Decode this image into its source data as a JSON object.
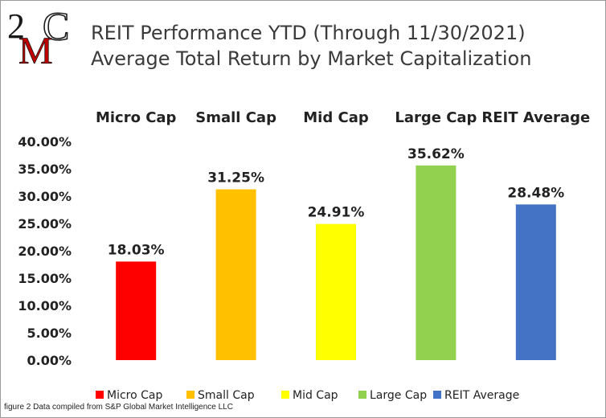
{
  "chart_data": {
    "type": "bar",
    "title": "REIT Performance YTD (Through 11/30/2021)",
    "subtitle": "Average Total Return by Market Capitalization",
    "categories": [
      "Micro Cap",
      "Small Cap",
      "Mid Cap",
      "Large Cap",
      "REIT Average"
    ],
    "values": [
      18.03,
      31.25,
      24.91,
      35.62,
      28.48
    ],
    "value_labels": [
      "18.03%",
      "31.25%",
      "24.91%",
      "35.62%",
      "28.48%"
    ],
    "colors": [
      "#ff0000",
      "#ffc000",
      "#ffff00",
      "#92d050",
      "#4472c4"
    ],
    "y_ticks": [
      "0.00%",
      "5.00%",
      "10.00%",
      "15.00%",
      "20.00%",
      "25.00%",
      "30.00%",
      "35.00%",
      "40.00%"
    ],
    "ylim": [
      0,
      40
    ],
    "xlabel": "",
    "ylabel": "",
    "grid": false,
    "category_labels_position": "top",
    "legend": {
      "position": "bottom",
      "entries": [
        "Micro Cap",
        "Small Cap",
        "Mid Cap",
        "Large Cap",
        "REIT Average"
      ]
    }
  },
  "logo": {
    "text": "2MC",
    "colors": [
      "#1a1a1a",
      "#c00000"
    ]
  },
  "footnote": "figure 2 Data compiled from S&P Global Market Intelligence LLC"
}
